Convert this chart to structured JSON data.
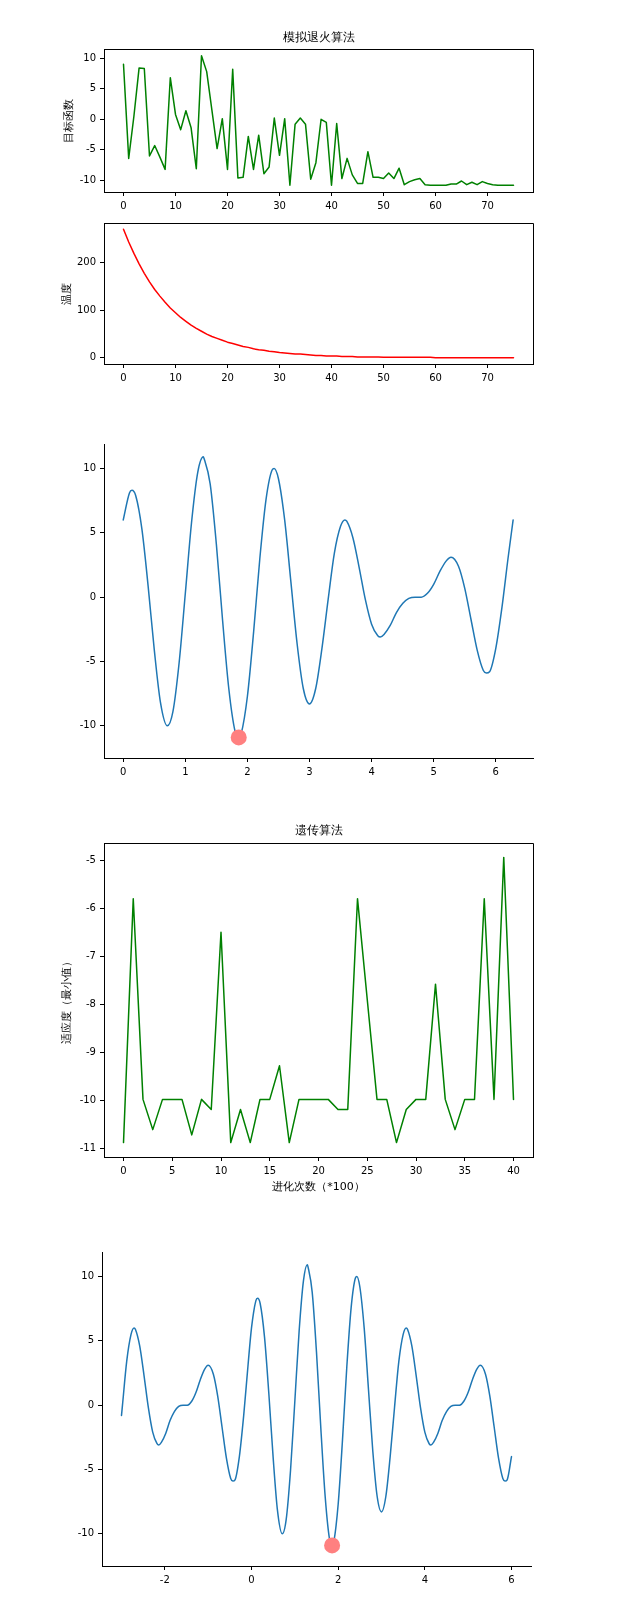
{
  "chart_data": [
    {
      "type": "line",
      "title": "模拟退火算法",
      "ylabel": "目标函数",
      "x": [
        0,
        1,
        2,
        3,
        4,
        5,
        6,
        7,
        8,
        9,
        10,
        11,
        12,
        13,
        14,
        15,
        16,
        17,
        18,
        19,
        20,
        21,
        22,
        23,
        24,
        25,
        26,
        27,
        28,
        29,
        30,
        31,
        32,
        33,
        34,
        35,
        36,
        37,
        38,
        39,
        40,
        41,
        42,
        43,
        44,
        45,
        46,
        47,
        48,
        49,
        50,
        51,
        52,
        53,
        54,
        55,
        56,
        57,
        58,
        59,
        60,
        61,
        62,
        63,
        64,
        65,
        66,
        67,
        68,
        69,
        70,
        71,
        72,
        73,
        74,
        75
      ],
      "values": [
        9.0,
        -6.4,
        0.5,
        8.4,
        8.3,
        -6.0,
        -4.3,
        -6.2,
        -8.2,
        6.8,
        0.8,
        -1.7,
        1.4,
        -1.4,
        -8.1,
        10.4,
        7.8,
        1.5,
        -4.8,
        0.1,
        -8.2,
        8.2,
        -9.6,
        -9.5,
        -2.8,
        -8.2,
        -2.6,
        -8.9,
        -7.8,
        0.2,
        -5.9,
        0.1,
        -10.8,
        -0.8,
        0.2,
        -0.8,
        -9.8,
        -7.1,
        0.0,
        -0.5,
        -10.8,
        -0.7,
        -9.7,
        -6.4,
        -9.1,
        -10.5,
        -10.5,
        -5.3,
        -9.5,
        -9.5,
        -9.7,
        -8.8,
        -9.7,
        -8.0,
        -10.7,
        -10.2,
        -9.9,
        -9.7,
        -10.7,
        -10.8,
        -10.8,
        -10.8,
        -10.8,
        -10.6,
        -10.6,
        -10.1,
        -10.7,
        -10.3,
        -10.7,
        -10.2,
        -10.5,
        -10.7,
        -10.8,
        -10.8,
        -10.8,
        -10.8
      ],
      "color": "#008000",
      "xlim": [
        -3.75,
        78.75
      ],
      "xticks": [
        0,
        10,
        20,
        30,
        40,
        50,
        60,
        70
      ],
      "ylim": [
        -11.9,
        11.5
      ],
      "yticks": [
        -10,
        -5,
        0,
        5,
        10
      ]
    },
    {
      "type": "line",
      "ylabel": "温度",
      "x": [
        0,
        1,
        2,
        3,
        4,
        5,
        6,
        7,
        8,
        9,
        10,
        11,
        12,
        13,
        14,
        15,
        16,
        17,
        18,
        19,
        20,
        21,
        22,
        23,
        24,
        25,
        26,
        27,
        28,
        29,
        30,
        31,
        32,
        33,
        34,
        35,
        36,
        37,
        38,
        39,
        40,
        41,
        42,
        43,
        44,
        45,
        46,
        47,
        48,
        49,
        50,
        51,
        52,
        53,
        54,
        55,
        56,
        57,
        58,
        59,
        60,
        61,
        62,
        63,
        64,
        65,
        66,
        67,
        68,
        69,
        70,
        71,
        72,
        73,
        74,
        75
      ],
      "values": [
        271,
        244,
        220,
        198,
        178,
        160,
        144,
        130,
        117,
        105,
        95,
        85,
        77,
        69,
        62,
        56,
        50,
        45,
        41,
        37,
        33,
        30,
        27,
        24,
        22,
        19,
        17,
        16,
        14,
        13,
        11,
        10,
        9,
        8,
        8,
        7,
        6,
        5,
        5,
        4,
        4,
        4,
        3,
        3,
        3,
        2,
        2,
        2,
        2,
        2,
        1,
        1,
        1,
        1,
        1,
        1,
        1,
        1,
        1,
        1,
        0,
        0,
        0,
        0,
        0,
        0,
        0,
        0,
        0,
        0,
        0,
        0,
        0,
        0,
        0,
        0
      ],
      "color": "#ff0000",
      "xlim": [
        -3.75,
        78.75
      ],
      "xticks": [
        0,
        10,
        20,
        30,
        40,
        50,
        60,
        70
      ],
      "ylim": [
        -13,
        284
      ],
      "yticks": [
        0,
        100,
        200
      ]
    },
    {
      "type": "line",
      "series": [
        {
          "x": [
            0,
            0.1,
            0.14,
            0.2,
            0.3,
            0.4,
            0.5,
            0.6,
            0.71,
            0.8,
            0.9,
            1.0,
            1.1,
            1.2,
            1.29,
            1.3,
            1.4,
            1.5,
            1.6,
            1.7,
            1.8,
            1.86,
            1.9,
            2.0,
            2.1,
            2.2,
            2.3,
            2.4,
            2.43,
            2.5,
            2.6,
            2.7,
            2.8,
            2.9,
            3.0,
            3.1,
            3.2,
            3.3,
            3.4,
            3.5,
            3.57,
            3.6,
            3.7,
            3.8,
            3.9,
            4.0,
            4.1,
            4.14,
            4.2,
            4.3,
            4.4,
            4.5,
            4.6,
            4.7,
            4.8,
            4.9,
            5.0,
            5.1,
            5.2,
            5.28,
            5.4,
            5.5,
            5.6,
            5.7,
            5.8,
            5.85,
            5.9,
            6.0,
            6.1,
            6.2,
            6.28
          ],
          "values": [
            6.0,
            8.1,
            8.3,
            7.9,
            5.3,
            0.9,
            -4.1,
            -8.2,
            -10.0,
            -8.9,
            -5.1,
            0.3,
            5.8,
            9.7,
            10.9,
            10.8,
            8.8,
            4.1,
            -1.8,
            -7.1,
            -10.4,
            -10.9,
            -10.6,
            -7.7,
            -2.7,
            3.0,
            7.6,
            9.9,
            10.0,
            9.2,
            6.0,
            1.2,
            -3.6,
            -7.1,
            -8.3,
            -7.1,
            -4.0,
            -0.2,
            3.4,
            5.5,
            6.0,
            5.9,
            4.6,
            2.3,
            -0.2,
            -2.1,
            -3.0,
            -3.1,
            -2.9,
            -2.2,
            -1.2,
            -0.5,
            -0.1,
            0.0,
            0.0,
            0.3,
            1.0,
            2.0,
            2.8,
            3.1,
            2.4,
            0.7,
            -1.7,
            -4.1,
            -5.7,
            -5.9,
            -5.8,
            -4.0,
            -0.8,
            3.1,
            6.0
          ],
          "color": "#1f77b4"
        },
        {
          "type": "scatter",
          "x": [
            1.86
          ],
          "values": [
            -10.9
          ],
          "color": "#ff8080",
          "marker": "circle"
        }
      ],
      "xlim": [
        -0.31,
        6.6
      ],
      "xticks": [
        0,
        1,
        2,
        3,
        4,
        5,
        6
      ],
      "ylim": [
        -12.5,
        11.9
      ],
      "yticks": [
        -10,
        -5,
        0,
        5,
        10
      ]
    },
    {
      "type": "line",
      "title": "遗传算法",
      "xlabel": "进化次数（*100）",
      "ylabel": "适应度（最小值）",
      "x": [
        0,
        1,
        2,
        3,
        4,
        5,
        6,
        7,
        8,
        9,
        10,
        11,
        12,
        13,
        14,
        15,
        16,
        17,
        18,
        19,
        20,
        21,
        22,
        23,
        24,
        25,
        26,
        27,
        28,
        29,
        30,
        31,
        32,
        33,
        34,
        35,
        36,
        37,
        38,
        39,
        40
      ],
      "values": [
        -10.88,
        -5.8,
        -9.98,
        -10.61,
        -9.98,
        -9.98,
        -9.98,
        -10.72,
        -9.98,
        -10.19,
        -6.5,
        -10.88,
        -10.19,
        -10.88,
        -9.98,
        -9.98,
        -9.28,
        -10.88,
        -9.98,
        -9.98,
        -9.98,
        -9.98,
        -10.19,
        -10.19,
        -5.8,
        -7.9,
        -9.98,
        -9.98,
        -10.88,
        -10.19,
        -9.98,
        -9.98,
        -7.58,
        -9.98,
        -10.61,
        -9.98,
        -9.98,
        -5.8,
        -9.98,
        -4.94,
        -9.98
      ],
      "color": "#008000",
      "xlim": [
        -2,
        42
      ],
      "xticks": [
        0,
        5,
        10,
        15,
        20,
        25,
        30,
        35,
        40
      ],
      "ylim": [
        -11.18,
        -4.64
      ],
      "yticks": [
        -11,
        -10,
        -9,
        -8,
        -7,
        -6,
        -5
      ]
    },
    {
      "type": "line",
      "series": [
        {
          "x": [
            -3,
            -2.98,
            -2.88,
            -2.78,
            -2.71,
            -2.68,
            -2.58,
            -2.48,
            -2.38,
            -2.28,
            -2.18,
            -2.14,
            -2.08,
            -1.98,
            -1.88,
            -1.78,
            -1.68,
            -1.58,
            -1.48,
            -1.38,
            -1.28,
            -1.18,
            -1.08,
            -1.0,
            -0.88,
            -0.78,
            -0.68,
            -0.58,
            -0.48,
            -0.43,
            -0.38,
            -0.28,
            -0.18,
            -0.08,
            0,
            0.1,
            0.14,
            0.2,
            0.3,
            0.4,
            0.5,
            0.6,
            0.71,
            0.8,
            0.9,
            1.0,
            1.1,
            1.2,
            1.29,
            1.3,
            1.4,
            1.5,
            1.6,
            1.7,
            1.8,
            1.86,
            1.9,
            2.0,
            2.1,
            2.2,
            2.3,
            2.4,
            2.43,
            2.5,
            2.6,
            2.7,
            2.8,
            2.9,
            3.0,
            3.1,
            3.2,
            3.3,
            3.4,
            3.5,
            3.57,
            3.6,
            3.7,
            3.8,
            3.9,
            4.0,
            4.1,
            4.14,
            4.2,
            4.3,
            4.4,
            4.5,
            4.6,
            4.7,
            4.8,
            4.9,
            5.0,
            5.1,
            5.2,
            5.28,
            5.4,
            5.5,
            5.6,
            5.7,
            5.8,
            5.85,
            5.9,
            6.0
          ],
          "values": [
            -0.8,
            -0.1,
            3.4,
            5.5,
            6.0,
            5.9,
            4.6,
            2.3,
            -0.2,
            -2.1,
            -3.0,
            -3.1,
            -2.9,
            -2.2,
            -1.2,
            -0.5,
            -0.1,
            0.0,
            0.0,
            0.3,
            1.0,
            2.0,
            2.8,
            3.1,
            2.4,
            0.7,
            -1.7,
            -4.1,
            -5.7,
            -5.9,
            -5.8,
            -4.0,
            -0.8,
            3.1,
            6.0,
            8.1,
            8.3,
            7.9,
            5.3,
            0.9,
            -4.1,
            -8.2,
            -10.0,
            -8.9,
            -5.1,
            0.3,
            5.8,
            9.7,
            10.9,
            10.8,
            8.8,
            4.1,
            -1.8,
            -7.1,
            -10.4,
            -10.9,
            -10.6,
            -7.7,
            -2.7,
            3.0,
            7.6,
            9.9,
            10.0,
            9.2,
            6.0,
            1.2,
            -3.6,
            -7.1,
            -8.3,
            -7.1,
            -4.0,
            -0.2,
            3.4,
            5.5,
            6.0,
            5.9,
            4.6,
            2.3,
            -0.2,
            -2.1,
            -3.0,
            -3.1,
            -2.9,
            -2.2,
            -1.2,
            -0.5,
            -0.1,
            0.0,
            0.0,
            0.3,
            1.0,
            2.0,
            2.8,
            3.1,
            2.4,
            0.7,
            -1.7,
            -4.1,
            -5.7,
            -5.9,
            -5.8,
            -4.0
          ],
          "color": "#1f77b4"
        },
        {
          "type": "scatter",
          "x": [
            1.86
          ],
          "values": [
            -10.9
          ],
          "color": "#ff8080",
          "marker": "circle"
        }
      ],
      "xlim": [
        -3.45,
        6.45
      ],
      "xticks": [
        -2,
        0,
        2,
        4,
        6
      ],
      "ylim": [
        -12.5,
        11.9
      ],
      "yticks": [
        -10,
        -5,
        0,
        5,
        10
      ]
    }
  ]
}
